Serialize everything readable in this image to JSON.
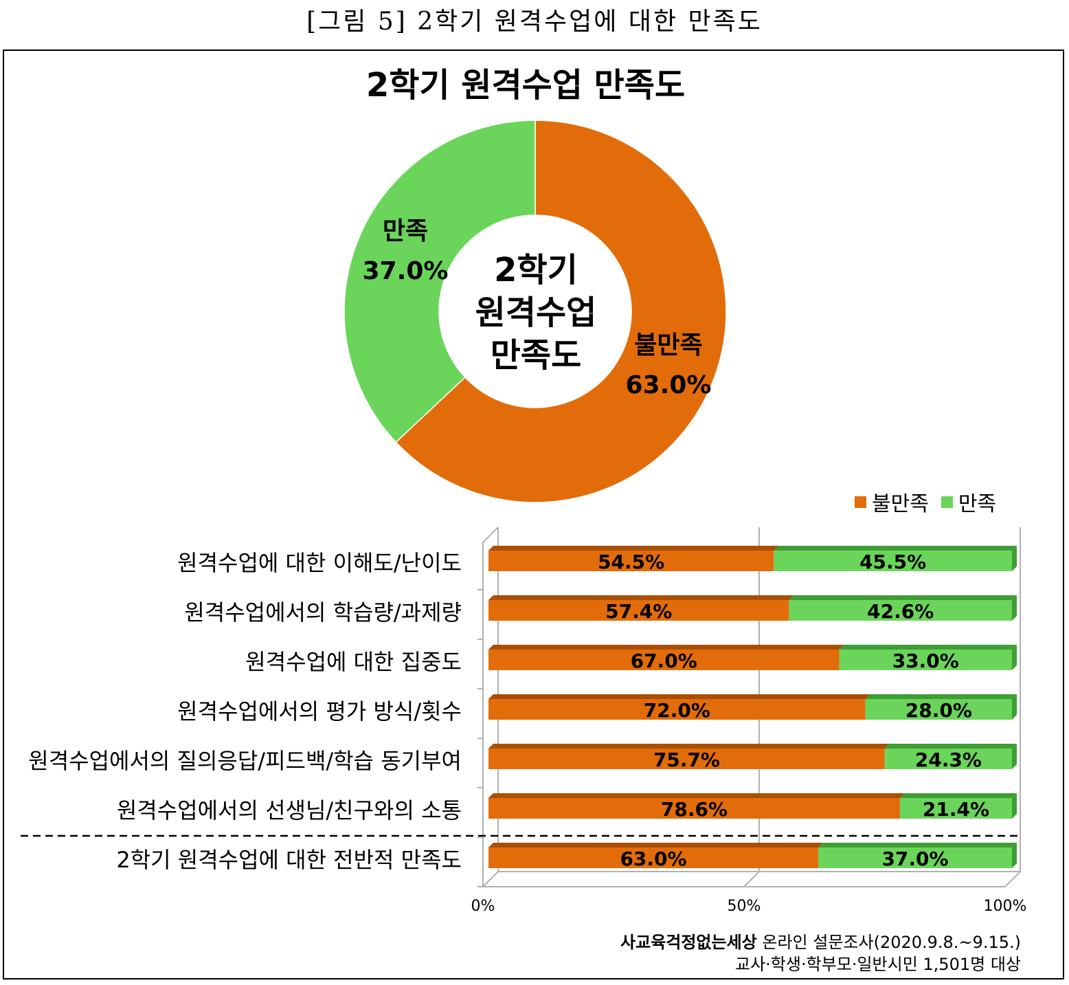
{
  "caption": "[그림 5] 2학기 원격수업에 대한 만족도",
  "colors": {
    "dissatisfied": "#E36C0A",
    "satisfied": "#6AD55A",
    "dissatisfied_dark": "#A94F06",
    "satisfied_dark": "#3E9E35"
  },
  "chart_data": [
    {
      "type": "pie",
      "variant": "donut",
      "title": "2학기 원격수업 만족도",
      "center_text": [
        "2학기",
        "원격수업",
        "만족도"
      ],
      "slices": [
        {
          "label": "불만족",
          "value": 63.0,
          "value_label": "63.0%"
        },
        {
          "label": "만족",
          "value": 37.0,
          "value_label": "37.0%"
        }
      ]
    },
    {
      "type": "bar",
      "orientation": "horizontal",
      "stacked": "100%",
      "legend": [
        "불만족",
        "만족"
      ],
      "legend_position": "top-right",
      "categories": [
        "원격수업에 대한 이해도/난이도",
        "원격수업에서의 학습량/과제량",
        "원격수업에 대한 집중도",
        "원격수업에서의 평가 방식/횟수",
        "원격수업에서의 질의응답/피드백/학습 동기부여",
        "원격수업에서의 선생님/친구와의 소통",
        "2학기 원격수업에 대한 전반적 만족도"
      ],
      "series": [
        {
          "name": "불만족",
          "values": [
            54.5,
            57.4,
            67.0,
            72.0,
            75.7,
            78.6,
            63.0
          ],
          "labels": [
            "54.5%",
            "57.4%",
            "67.0%",
            "72.0%",
            "75.7%",
            "78.6%",
            "63.0%"
          ]
        },
        {
          "name": "만족",
          "values": [
            45.5,
            42.6,
            33.0,
            28.0,
            24.3,
            21.4,
            37.0
          ],
          "labels": [
            "45.5%",
            "42.6%",
            "33.0%",
            "28.0%",
            "24.3%",
            "21.4%",
            "37.0%"
          ]
        }
      ],
      "xticks": [
        "0%",
        "50%",
        "100%"
      ],
      "xlim": [
        0,
        100
      ]
    }
  ],
  "source": {
    "org": "사교육걱정없는세상",
    "line1_rest": " 온라인 설문조사(2020.9.8.~9.15.)",
    "line2": "교사·학생·학부모·일반시민 1,501명 대상"
  }
}
